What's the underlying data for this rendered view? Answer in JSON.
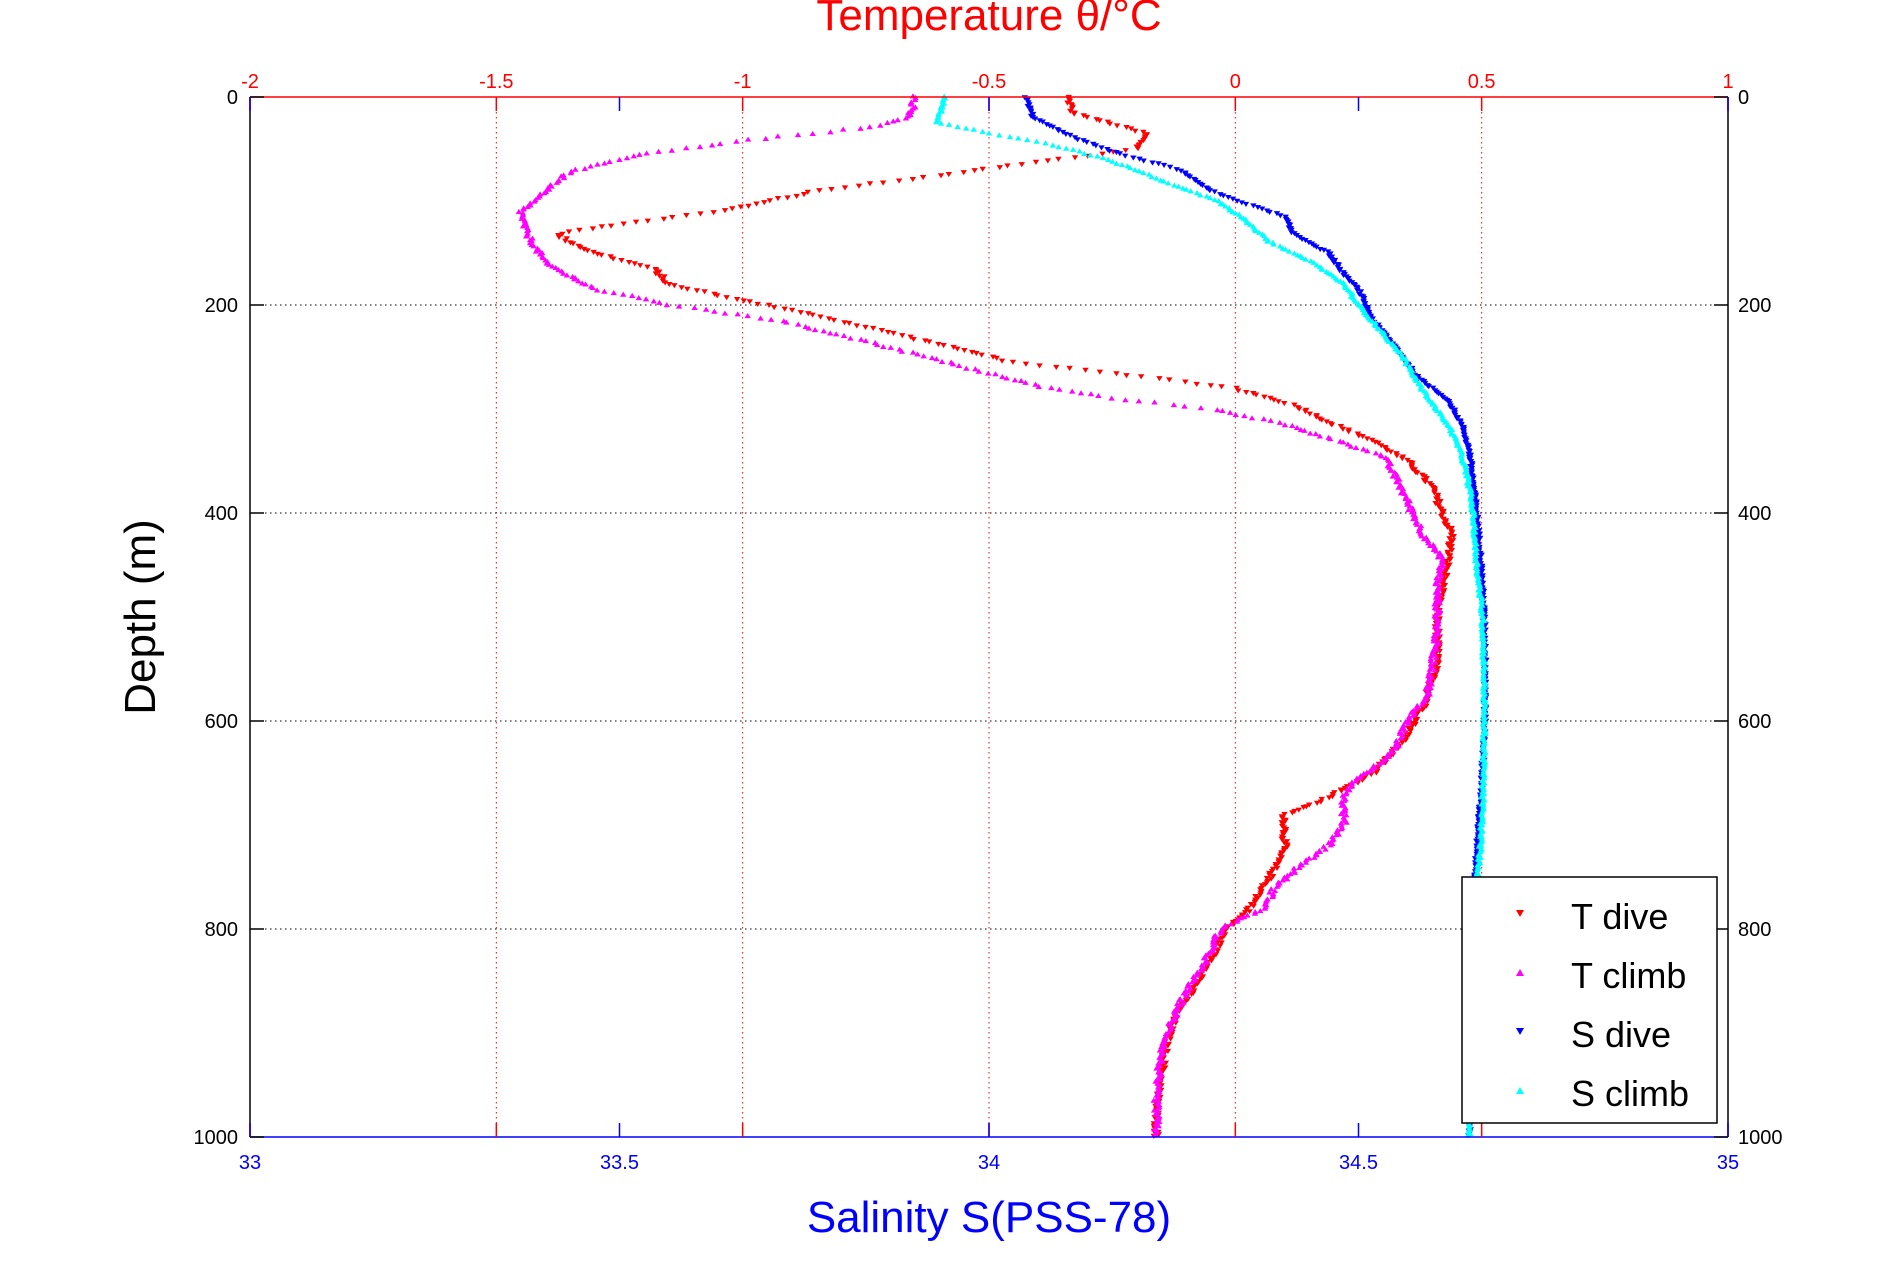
{
  "chart_data": {
    "type": "scatter",
    "title": "Temperature θ/°C",
    "xlabel_bottom": "Salinity S(PSS-78)",
    "ylabel": "Depth (m)",
    "x_bottom": {
      "label": "Salinity S(PSS-78)",
      "lim": [
        33,
        35
      ],
      "ticks": [
        33,
        33.5,
        34,
        34.5,
        35
      ],
      "tick_labels": [
        "33",
        "33.5",
        "34",
        "34.5",
        "35"
      ],
      "color": "#0000ff"
    },
    "x_top": {
      "label": "Temperature θ/°C",
      "lim": [
        -2,
        1
      ],
      "ticks": [
        -2,
        -1.5,
        -1,
        -0.5,
        0,
        0.5,
        1
      ],
      "tick_labels": [
        "-2",
        "-1.5",
        "-1",
        "-0.5",
        "0",
        "0.5",
        "1"
      ],
      "color": "#ff0000"
    },
    "y": {
      "label": "Depth (m)",
      "lim": [
        0,
        1000
      ],
      "reversed": true,
      "ticks": [
        0,
        200,
        400,
        600,
        800,
        1000
      ],
      "tick_labels": [
        "0",
        "200",
        "400",
        "600",
        "800",
        "1000"
      ]
    },
    "grid": true,
    "legend_position": "bottom-right",
    "series": [
      {
        "name": "T dive",
        "axis": "top",
        "color": "#ff0000",
        "marker": "triangle-down",
        "points": [
          [
            -0.34,
            0
          ],
          [
            -0.33,
            15
          ],
          [
            -0.18,
            35
          ],
          [
            -0.2,
            50
          ],
          [
            -0.45,
            65
          ],
          [
            -0.6,
            75
          ],
          [
            -0.85,
            90
          ],
          [
            -1.05,
            110
          ],
          [
            -1.22,
            120
          ],
          [
            -1.38,
            132
          ],
          [
            -1.3,
            150
          ],
          [
            -1.18,
            165
          ],
          [
            -1.15,
            180
          ],
          [
            -1.0,
            195
          ],
          [
            -0.85,
            210
          ],
          [
            -0.62,
            235
          ],
          [
            -0.45,
            255
          ],
          [
            -0.2,
            268
          ],
          [
            0.0,
            280
          ],
          [
            0.13,
            298
          ],
          [
            0.2,
            315
          ],
          [
            0.28,
            330
          ],
          [
            0.35,
            350
          ],
          [
            0.4,
            375
          ],
          [
            0.42,
            400
          ],
          [
            0.44,
            420
          ],
          [
            0.43,
            450
          ],
          [
            0.41,
            490
          ],
          [
            0.41,
            540
          ],
          [
            0.39,
            580
          ],
          [
            0.34,
            620
          ],
          [
            0.28,
            650
          ],
          [
            0.18,
            675
          ],
          [
            0.1,
            690
          ],
          [
            0.1,
            720
          ],
          [
            0.07,
            750
          ],
          [
            0.03,
            780
          ],
          [
            -0.02,
            800
          ],
          [
            -0.06,
            840
          ],
          [
            -0.12,
            880
          ],
          [
            -0.14,
            910
          ],
          [
            -0.15,
            940
          ],
          [
            -0.16,
            970
          ],
          [
            -0.16,
            1000
          ]
        ]
      },
      {
        "name": "T climb",
        "axis": "top",
        "color": "#ff00ff",
        "marker": "triangle-up",
        "points": [
          [
            -0.65,
            0
          ],
          [
            -0.66,
            20
          ],
          [
            -0.75,
            30
          ],
          [
            -1.0,
            42
          ],
          [
            -1.2,
            55
          ],
          [
            -1.35,
            72
          ],
          [
            -1.4,
            90
          ],
          [
            -1.45,
            110
          ],
          [
            -1.44,
            130
          ],
          [
            -1.4,
            160
          ],
          [
            -1.3,
            185
          ],
          [
            -1.15,
            200
          ],
          [
            -0.93,
            215
          ],
          [
            -0.75,
            235
          ],
          [
            -0.55,
            260
          ],
          [
            -0.4,
            278
          ],
          [
            -0.25,
            290
          ],
          [
            -0.05,
            300
          ],
          [
            0.1,
            315
          ],
          [
            0.2,
            330
          ],
          [
            0.3,
            345
          ],
          [
            0.33,
            370
          ],
          [
            0.36,
            400
          ],
          [
            0.38,
            420
          ],
          [
            0.42,
            445
          ],
          [
            0.41,
            470
          ],
          [
            0.41,
            510
          ],
          [
            0.4,
            550
          ],
          [
            0.39,
            575
          ],
          [
            0.35,
            600
          ],
          [
            0.32,
            630
          ],
          [
            0.24,
            660
          ],
          [
            0.22,
            675
          ],
          [
            0.22,
            700
          ],
          [
            0.19,
            720
          ],
          [
            0.13,
            740
          ],
          [
            0.08,
            760
          ],
          [
            0.06,
            780
          ],
          [
            -0.03,
            800
          ],
          [
            -0.06,
            830
          ],
          [
            -0.1,
            860
          ],
          [
            -0.13,
            890
          ],
          [
            -0.15,
            920
          ],
          [
            -0.16,
            950
          ],
          [
            -0.16,
            980
          ],
          [
            -0.16,
            1000
          ]
        ]
      },
      {
        "name": "S dive",
        "axis": "bottom",
        "color": "#0000ff",
        "marker": "triangle-down",
        "points": [
          [
            34.05,
            0
          ],
          [
            34.06,
            20
          ],
          [
            34.12,
            40
          ],
          [
            34.18,
            55
          ],
          [
            34.26,
            70
          ],
          [
            34.3,
            90
          ],
          [
            34.36,
            105
          ],
          [
            34.4,
            115
          ],
          [
            34.41,
            130
          ],
          [
            34.46,
            150
          ],
          [
            34.48,
            170
          ],
          [
            34.5,
            185
          ],
          [
            34.51,
            200
          ],
          [
            34.52,
            215
          ],
          [
            34.55,
            240
          ],
          [
            34.58,
            270
          ],
          [
            34.62,
            290
          ],
          [
            34.64,
            315
          ],
          [
            34.65,
            340
          ],
          [
            34.655,
            370
          ],
          [
            34.66,
            400
          ],
          [
            34.665,
            440
          ],
          [
            34.67,
            500
          ],
          [
            34.672,
            560
          ],
          [
            34.67,
            620
          ],
          [
            34.665,
            680
          ],
          [
            34.66,
            720
          ],
          [
            34.658,
            760
          ],
          [
            34.655,
            820
          ],
          [
            34.652,
            900
          ],
          [
            34.65,
            960
          ],
          [
            34.65,
            1000
          ]
        ]
      },
      {
        "name": "S climb",
        "axis": "bottom",
        "color": "#00ffff",
        "marker": "triangle-up",
        "points": [
          [
            33.94,
            0
          ],
          [
            33.93,
            25
          ],
          [
            34.0,
            35
          ],
          [
            34.08,
            45
          ],
          [
            34.16,
            60
          ],
          [
            34.25,
            85
          ],
          [
            34.31,
            100
          ],
          [
            34.34,
            115
          ],
          [
            34.38,
            140
          ],
          [
            34.44,
            160
          ],
          [
            34.48,
            180
          ],
          [
            34.5,
            200
          ],
          [
            34.53,
            225
          ],
          [
            34.56,
            250
          ],
          [
            34.58,
            275
          ],
          [
            34.6,
            295
          ],
          [
            34.625,
            320
          ],
          [
            34.64,
            345
          ],
          [
            34.65,
            375
          ],
          [
            34.655,
            400
          ],
          [
            34.66,
            450
          ],
          [
            34.668,
            500
          ],
          [
            34.67,
            560
          ],
          [
            34.67,
            620
          ],
          [
            34.668,
            680
          ],
          [
            34.665,
            720
          ],
          [
            34.66,
            760
          ],
          [
            34.655,
            820
          ],
          [
            34.652,
            900
          ],
          [
            34.65,
            960
          ],
          [
            34.65,
            1000
          ]
        ]
      }
    ]
  },
  "legend": {
    "items": [
      {
        "label": "T dive",
        "color": "#ff0000",
        "marker": "triangle-down"
      },
      {
        "label": "T climb",
        "color": "#ff00ff",
        "marker": "triangle-up"
      },
      {
        "label": "S dive",
        "color": "#0000ff",
        "marker": "triangle-down"
      },
      {
        "label": "S climb",
        "color": "#00ffff",
        "marker": "triangle-up"
      }
    ]
  }
}
